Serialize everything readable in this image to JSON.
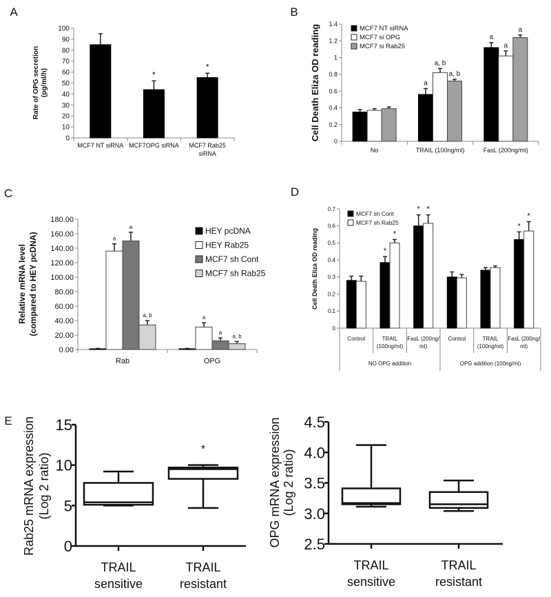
{
  "chart_data": [
    {
      "panel": "A",
      "type": "bar",
      "title": "",
      "ylabel": [
        "Rate of OPG secretion",
        "(pg/ml/h)"
      ],
      "ylim": [
        0,
        100
      ],
      "yticks": [
        "0",
        "10",
        "20",
        "30",
        "40",
        "50",
        "60",
        "70",
        "80",
        "90",
        "100"
      ],
      "categories": [
        [
          "MCF7 NT siRNA"
        ],
        [
          "MCF7OPG  siRNA"
        ],
        [
          "MCF7 Rab25",
          "siRNA"
        ]
      ],
      "series": [
        {
          "name": "",
          "color": "#000000",
          "values": [
            85,
            44,
            55
          ],
          "errors": [
            10,
            8,
            4
          ],
          "annotations": [
            "",
            "*",
            "*"
          ]
        }
      ]
    },
    {
      "panel": "B",
      "type": "bar",
      "ylabel": [
        "Cell Death Eliza OD reading"
      ],
      "ylim": [
        0,
        1.4
      ],
      "yticks": [
        "0",
        "0.2",
        "0.4",
        "0.6",
        "0.8",
        "1",
        "1.2",
        "1.4"
      ],
      "categories": [
        [
          "No"
        ],
        [
          "TRAIL  (100ng/ml)"
        ],
        [
          "FasL  (200ng/ml)"
        ]
      ],
      "series": [
        {
          "name": "MCF7 NT siRNA",
          "color": "#000000",
          "values": [
            0.35,
            0.56,
            1.12
          ],
          "errors": [
            0.03,
            0.07,
            0.06
          ],
          "annotations": [
            "",
            "a",
            "a"
          ]
        },
        {
          "name": "MCF7 si OPG",
          "color": "#ffffff",
          "values": [
            0.37,
            0.82,
            1.02
          ],
          "errors": [
            0.02,
            0.05,
            0.06
          ],
          "annotations": [
            "",
            "a, b",
            "a"
          ]
        },
        {
          "name": "MCF7 si Rab25",
          "color": "#a0a0a0",
          "values": [
            0.39,
            0.72,
            1.24
          ],
          "errors": [
            0.02,
            0.02,
            0.03
          ],
          "annotations": [
            "",
            "a, b",
            "a"
          ]
        }
      ],
      "legend": "top-left"
    },
    {
      "panel": "C",
      "type": "bar",
      "ylabel": [
        "Relative mRNA level",
        "(compared to HEY pcDNA)"
      ],
      "ylim": [
        0,
        180
      ],
      "yticks": [
        "0.00",
        "20.00",
        "40.00",
        "60.00",
        "80.00",
        "100.00",
        "120.00",
        "140.00",
        "160.00",
        "180.00"
      ],
      "categories": [
        [
          "Rab"
        ],
        [
          "OPG"
        ]
      ],
      "series": [
        {
          "name": "HEY pcDNA",
          "color": "#000000",
          "values": [
            1,
            1
          ],
          "errors": [
            0.5,
            0.5
          ],
          "annotations": [
            "",
            ""
          ]
        },
        {
          "name": "HEY Rab25",
          "color": "#ffffff",
          "values": [
            136,
            31
          ],
          "errors": [
            10,
            6
          ],
          "annotations": [
            "a",
            "a"
          ]
        },
        {
          "name": "MCF7 sh Cont",
          "color": "#777777",
          "values": [
            150,
            12
          ],
          "errors": [
            12,
            4
          ],
          "annotations": [
            "a",
            "a"
          ]
        },
        {
          "name": "MCF7 sh Rab25",
          "color": "#d4d4d4",
          "values": [
            34,
            8
          ],
          "errors": [
            6,
            3
          ],
          "annotations": [
            "a, b",
            "a, b"
          ]
        }
      ],
      "legend": "top-right"
    },
    {
      "panel": "D",
      "type": "bar",
      "ylabel": [
        "Cell Death Eliza OD reading"
      ],
      "ylim": [
        0,
        0.7
      ],
      "yticks": [
        "0",
        "0.1",
        "0.2",
        "0.3",
        "0.4",
        "0.5",
        "0.6",
        "0.7"
      ],
      "categories": [
        [
          "Control"
        ],
        [
          "TRAIL",
          "(100ng/ml)"
        ],
        [
          "FasL (200ng/",
          "ml)"
        ],
        [
          "Control"
        ],
        [
          "TRAIL",
          "(100ng/ml)"
        ],
        [
          "FasL (200ng/",
          "ml)"
        ]
      ],
      "groups": [
        {
          "label": "NO OPG addition",
          "categories": [
            0,
            1,
            2
          ]
        },
        {
          "label": "OPG addition (100ng/ml)",
          "categories": [
            3,
            4,
            5
          ]
        }
      ],
      "series": [
        {
          "name": "MCF7 sh Cont",
          "color": "#000000",
          "values": [
            0.28,
            0.385,
            0.6,
            0.3,
            0.34,
            0.52
          ],
          "errors": [
            0.025,
            0.035,
            0.065,
            0.03,
            0.015,
            0.045
          ],
          "annotations": [
            "",
            "*",
            "*",
            "",
            "",
            "*"
          ]
        },
        {
          "name": "MCF7 sh  Rab25",
          "color": "#ffffff",
          "values": [
            0.275,
            0.5,
            0.615,
            0.295,
            0.355,
            0.57
          ],
          "errors": [
            0.03,
            0.02,
            0.05,
            0.02,
            0.01,
            0.055
          ],
          "annotations": [
            "",
            "*",
            "*",
            "",
            "",
            "*"
          ]
        }
      ],
      "legend": "top-left"
    },
    {
      "panel": "E",
      "type": "box",
      "ylabel": [
        "Rab25 mRNA expression",
        "(Log 2 ratio)"
      ],
      "ylim": [
        0,
        15
      ],
      "yticks": [
        "0",
        "5",
        "10",
        "15"
      ],
      "groups": [
        {
          "label": [
            "TRAIL",
            "sensitive"
          ],
          "min": 5.0,
          "q1": 5.1,
          "median": 5.4,
          "q3": 7.8,
          "max": 9.2,
          "annotation": ""
        },
        {
          "label": [
            "TRAIL",
            "resistant"
          ],
          "min": 4.7,
          "q1": 8.3,
          "median": 9.5,
          "q3": 9.7,
          "max": 10.0,
          "annotation": "*"
        }
      ]
    },
    {
      "panel": "",
      "type": "box",
      "ylabel": [
        "OPG mRNA expression",
        "(Log 2 ratio)"
      ],
      "ylim": [
        2.5,
        4.5
      ],
      "yticks": [
        "2.5",
        "3.0",
        "3.5",
        "4.0",
        "4.5"
      ],
      "groups": [
        {
          "label": [
            "TRAIL",
            "sensitive"
          ],
          "min": 3.11,
          "q1": 3.15,
          "median": 3.17,
          "q3": 3.41,
          "max": 4.12,
          "annotation": ""
        },
        {
          "label": [
            "TRAIL",
            "resistant"
          ],
          "min": 3.04,
          "q1": 3.09,
          "median": 3.15,
          "q3": 3.35,
          "max": 3.54,
          "annotation": ""
        }
      ]
    }
  ]
}
